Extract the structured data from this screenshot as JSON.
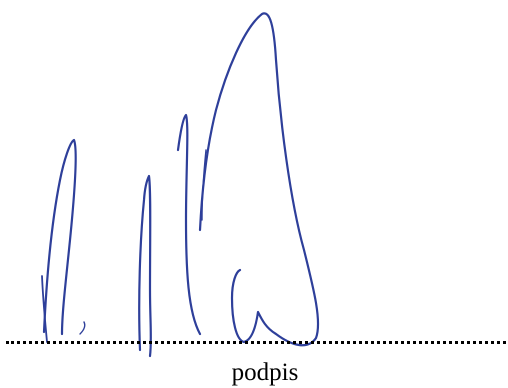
{
  "signature": {
    "caption": "podpis",
    "ink_color": "#2e3f9a",
    "line_color": "#000000",
    "icon": "handwritten-signature"
  }
}
